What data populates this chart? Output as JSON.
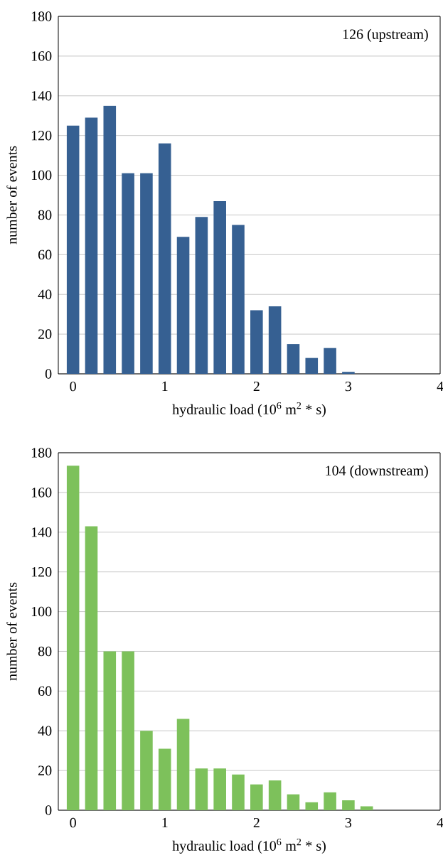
{
  "chart_data": [
    {
      "type": "bar",
      "annotations": [
        "126 (upstream)"
      ],
      "xlabel": "hydraulic load (10$^{6}$ m$^{2}$ * s)",
      "ylabel": "number of events",
      "categories": [
        "0",
        null,
        null,
        null,
        null,
        "1",
        null,
        null,
        null,
        null,
        "2",
        null,
        null,
        null,
        null,
        "3",
        null,
        null,
        null,
        null,
        "4"
      ],
      "values": [
        125,
        129,
        135,
        101,
        101,
        116,
        69,
        79,
        87,
        75,
        32,
        34,
        15,
        8,
        13,
        1,
        0,
        0,
        0,
        0,
        0
      ],
      "color": "#366092",
      "ylim": [
        0,
        180
      ],
      "yticks": [
        0,
        20,
        40,
        60,
        80,
        100,
        120,
        140,
        160,
        180
      ],
      "grid": "y"
    },
    {
      "type": "bar",
      "annotations": [
        "104 (downstream)"
      ],
      "xlabel": "hydraulic load (10$^{6}$ m$^{2}$ * s)",
      "ylabel": "number of events",
      "categories": [
        "0",
        null,
        null,
        null,
        null,
        "1",
        null,
        null,
        null,
        null,
        "2",
        null,
        null,
        null,
        null,
        "3",
        null,
        null,
        null,
        null,
        "4"
      ],
      "values": [
        173.5,
        143,
        80,
        80,
        40,
        31,
        46,
        21,
        21,
        18,
        13,
        15,
        8,
        4,
        9,
        5,
        2,
        0,
        0,
        0,
        0
      ],
      "color": "#7dc15b",
      "ylim": [
        0,
        180
      ],
      "yticks": [
        0,
        20,
        40,
        60,
        80,
        100,
        120,
        140,
        160,
        180
      ],
      "grid": "y"
    }
  ]
}
